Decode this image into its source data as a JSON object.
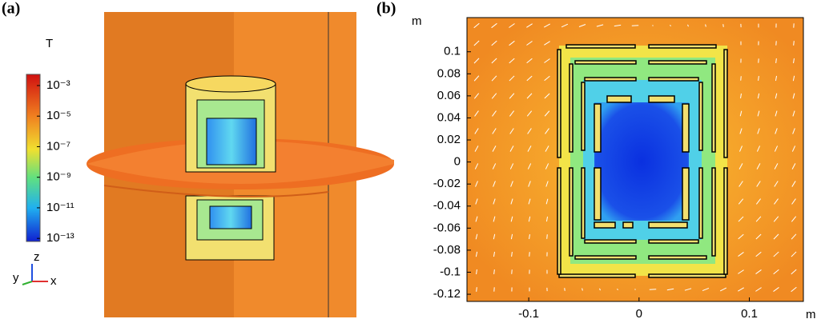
{
  "panel_a": {
    "label": "(a)",
    "colorbar": {
      "title": "T",
      "scale": "log",
      "lim": [
        6.3e-14,
        0.0054
      ],
      "ticks": [
        {
          "value": 0.001,
          "label": "10⁻³"
        },
        {
          "value": 1e-05,
          "label": "10⁻⁵"
        },
        {
          "value": 1e-07,
          "label": "10⁻⁷"
        },
        {
          "value": 1e-09,
          "label": "10⁻⁹"
        },
        {
          "value": 1e-11,
          "label": "10⁻¹¹"
        },
        {
          "value": 1e-13,
          "label": "10⁻¹³"
        }
      ]
    },
    "axes_triad": {
      "z": "z",
      "y": "y",
      "x": "x"
    }
  },
  "panel_b": {
    "label": "(b)",
    "x_unit": "m",
    "y_unit": "m",
    "xlim": [
      -0.156,
      0.149
    ],
    "ylim": [
      -0.1265,
      0.131
    ],
    "xticks": [
      -0.1,
      0,
      0.1
    ],
    "yticks": [
      0.1,
      0.08,
      0.06,
      0.04,
      0.02,
      0,
      -0.02,
      -0.04,
      -0.06,
      -0.08,
      -0.1,
      -0.12
    ]
  }
}
